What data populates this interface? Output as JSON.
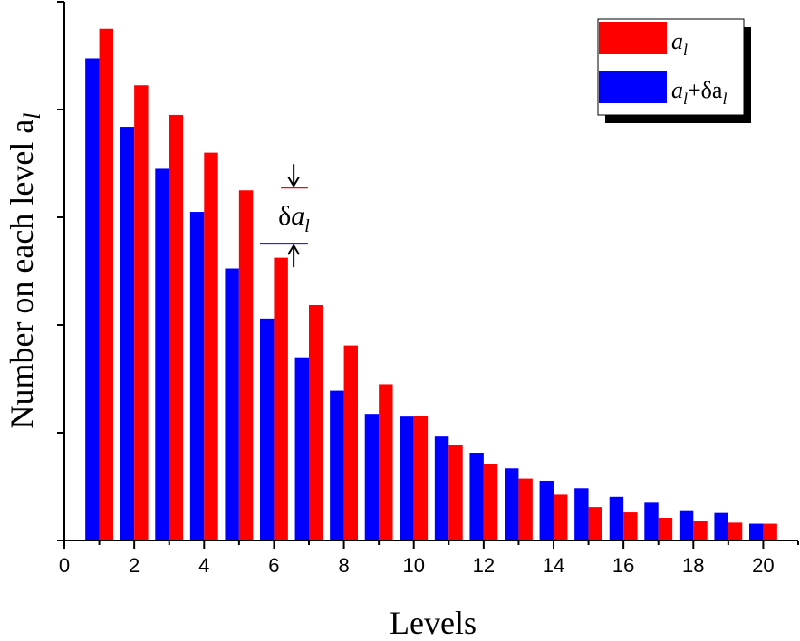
{
  "chart_data": {
    "type": "bar",
    "xlabel": "Levels",
    "ylabel": "Number on each level a",
    "ylabel_subscript": "l",
    "xlim": [
      0,
      21
    ],
    "xticks": [
      0,
      2,
      4,
      6,
      8,
      10,
      12,
      14,
      16,
      18,
      20
    ],
    "ylim": [
      0,
      100
    ],
    "yticks": [
      0,
      20,
      40,
      60,
      80,
      100
    ],
    "grid": false,
    "legend_position": "top-right",
    "categories": [
      1,
      2,
      3,
      4,
      5,
      6,
      7,
      8,
      9,
      10,
      11,
      12,
      13,
      14,
      15,
      16,
      17,
      18,
      19,
      20
    ],
    "series": [
      {
        "name": "a",
        "name_subscript": "l",
        "color": "#ff0000",
        "offset": 0.2,
        "values": [
          95,
          84.5,
          79,
          72,
          65,
          52.5,
          43.7,
          36.2,
          29,
          23.1,
          17.8,
          14.2,
          11.5,
          8.5,
          6.2,
          5.2,
          4.2,
          3.6,
          3.3,
          3.1
        ]
      },
      {
        "name": "a",
        "name_subscript": "l",
        "name_suffix": "+δa",
        "name_suffix_subscript": "l",
        "color": "#0000ff",
        "offset": -0.2,
        "values": [
          89.5,
          76.8,
          69,
          61,
          50.5,
          41.2,
          34,
          27.8,
          23.5,
          23,
          19.3,
          16.3,
          13.4,
          11.1,
          9.7,
          8.1,
          7.0,
          5.6,
          5.1,
          3.1
        ]
      }
    ],
    "annotation": {
      "label": "δa",
      "label_subscript": "l",
      "level": 6,
      "top": 65.5,
      "bottom": 55.1
    }
  }
}
